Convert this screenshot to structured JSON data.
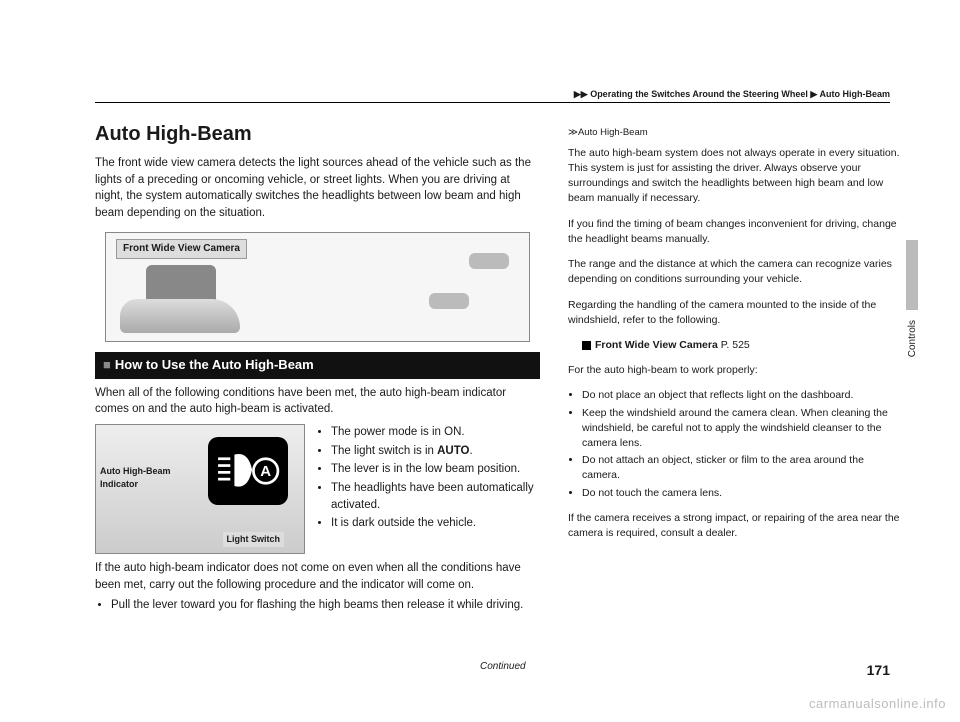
{
  "breadcrumb": {
    "sep": "▶",
    "part1": "Operating the Switches Around the Steering Wheel",
    "part2": "Auto High-Beam"
  },
  "title": "Auto High-Beam",
  "intro": "The front wide view camera detects the light sources ahead of the vehicle such as the lights of a preceding or oncoming vehicle, or street lights. When you are driving at night, the system automatically switches the headlights between low beam and high beam depending on the situation.",
  "diagram_label": "Front Wide View Camera",
  "subheading": "How to Use the Auto High-Beam",
  "sub_intro": "When all of the following conditions have been met, the auto high-beam indicator comes on and the auto high-beam is activated.",
  "panel": {
    "label_indicator": "Auto High-Beam Indicator",
    "label_switch": "Light Switch"
  },
  "conditions": [
    "The power mode is in ON.",
    "The light switch is in AUTO.",
    "The lever is in the low beam position.",
    "The headlights have been automatically activated.",
    "It is dark outside the vehicle."
  ],
  "conditions_bold_idx": 1,
  "conditions_bold_word": "AUTO",
  "after_panel": "If the auto high-beam indicator does not come on even when all the conditions have been met, carry out the following procedure and the indicator will come on.",
  "after_bullet": "Pull the lever toward you for flashing the high beams then release it while driving.",
  "sidebar": {
    "header": "Auto High-Beam",
    "p1": "The auto high-beam system does not always operate in every situation. This system is just for assisting the driver. Always observe your surroundings and switch the headlights between high beam and low beam manually if necessary.",
    "p2": "If you find the timing of beam changes inconvenient for driving, change the headlight beams manually.",
    "p3": "The range and the distance at which the camera can recognize varies depending on conditions surrounding your vehicle.",
    "p4": "Regarding the handling of the camera mounted to the inside of the windshield, refer to the following.",
    "ref_label": "Front Wide View Camera",
    "ref_page": "P. 525",
    "p5": "For the auto high-beam to work properly:",
    "tips": [
      "Do not place an object that reflects light on the dashboard.",
      "Keep the windshield around the camera clean. When cleaning the windshield, be careful not to apply the windshield cleanser to the camera lens.",
      "Do not attach an object, sticker or film to the area around the camera.",
      "Do not touch the camera lens."
    ],
    "p6": "If the camera receives a strong impact, or repairing of the area near the camera is required, consult a dealer."
  },
  "side_tab_label": "Controls",
  "continued": "Continued",
  "page_number": "171",
  "watermark": "carmanualsonline.info"
}
